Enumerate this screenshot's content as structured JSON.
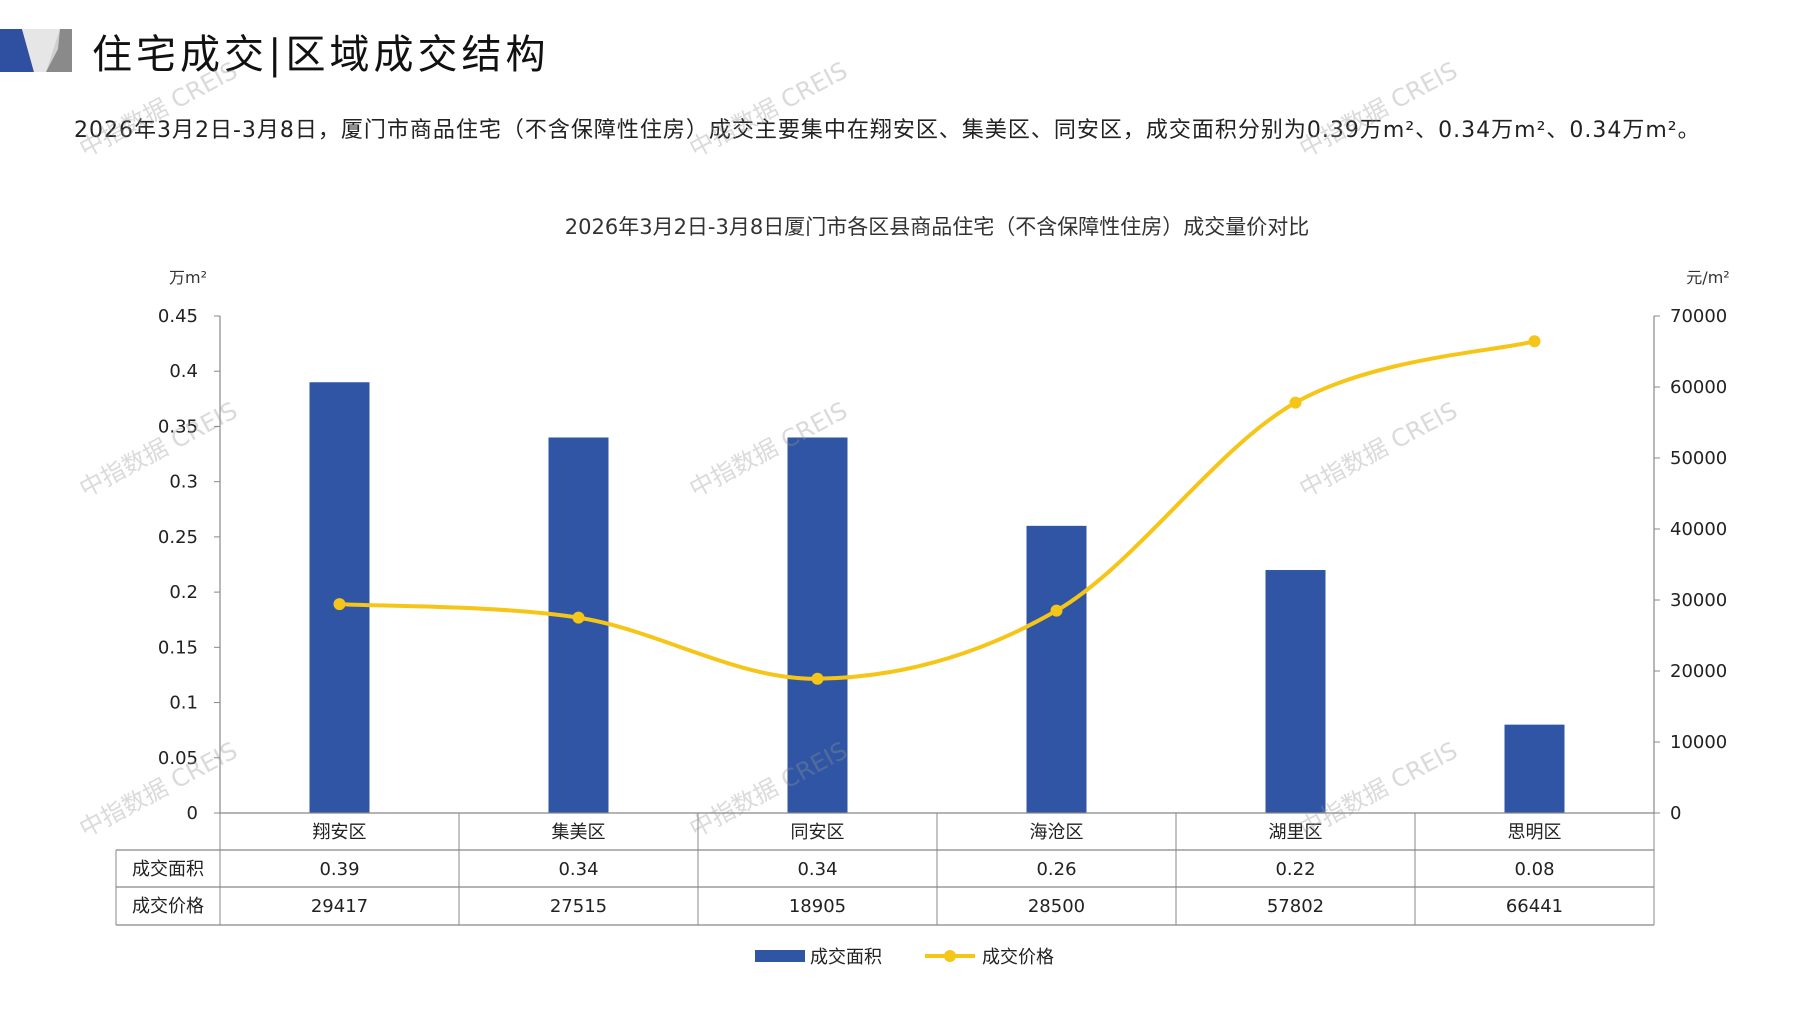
{
  "header": {
    "title": "住宅成交|区域成交结构"
  },
  "summary": "2026年3月2日-3月8日，厦门市商品住宅（不含保障性住房）成交主要集中在翔安区、集美区、同安区，成交面积分别为0.39万m²、0.34万m²、0.34万m²。",
  "watermark": "中指数据 CREIS",
  "colors": {
    "bar": "#2F55A4",
    "line": "#F5C518",
    "accent": "#2F4FA0"
  },
  "chart_data": {
    "type": "bar+line",
    "title": "2026年3月2日-3月8日厦门市各区县商品住宅（不含保障性住房）成交量价对比",
    "categories": [
      "翔安区",
      "集美区",
      "同安区",
      "海沧区",
      "湖里区",
      "思明区"
    ],
    "series": [
      {
        "name": "成交面积",
        "type": "bar",
        "axis": "left",
        "values": [
          0.39,
          0.34,
          0.34,
          0.26,
          0.22,
          0.08
        ],
        "labels": [
          "0.39",
          "0.34",
          "0.34",
          "0.26",
          "0.22",
          "0.08"
        ]
      },
      {
        "name": "成交价格",
        "type": "line",
        "axis": "right",
        "values": [
          29417,
          27515,
          18905,
          28500,
          57802,
          66441
        ],
        "labels": [
          "29417",
          "27515",
          "18905",
          "28500",
          "57802",
          "66441"
        ]
      }
    ],
    "left_axis": {
      "unit": "万m²",
      "ylim": [
        0,
        0.45
      ],
      "ticks": [
        "0",
        "0.05",
        "0.1",
        "0.15",
        "0.2",
        "0.25",
        "0.3",
        "0.35",
        "0.4",
        "0.45"
      ]
    },
    "right_axis": {
      "unit": "元/m²",
      "ylim": [
        0,
        70000
      ],
      "ticks": [
        "0",
        "10000",
        "20000",
        "30000",
        "40000",
        "50000",
        "60000",
        "70000"
      ]
    },
    "legend_position": "bottom"
  }
}
